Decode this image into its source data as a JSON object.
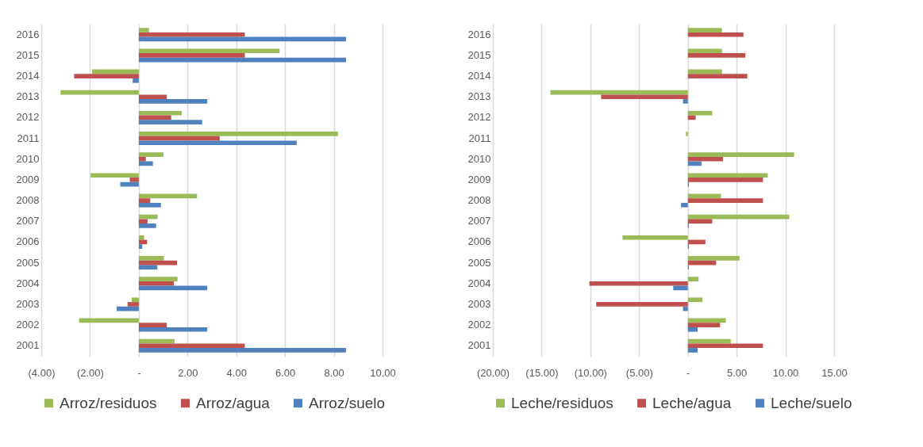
{
  "chart_data": [
    {
      "type": "bar",
      "orientation": "horizontal",
      "categories": [
        "2016",
        "2015",
        "2014",
        "2013",
        "2012",
        "2011",
        "2010",
        "2009",
        "2008",
        "2007",
        "2006",
        "2005",
        "2004",
        "2003",
        "2002",
        "2001"
      ],
      "series": [
        {
          "name": "Arroz/residuos",
          "color": "#9bbb59",
          "values": [
            0.42,
            5.78,
            -1.92,
            -3.21,
            1.76,
            8.17,
            1.01,
            -1.97,
            2.39,
            0.77,
            0.22,
            1.03,
            1.59,
            -0.29,
            -2.45,
            1.47
          ]
        },
        {
          "name": "Arroz/agua",
          "color": "#c0504d",
          "values": [
            4.35,
            4.35,
            -2.65,
            1.15,
            1.33,
            3.32,
            0.29,
            -0.37,
            0.47,
            0.36,
            0.34,
            1.57,
            1.44,
            -0.46,
            1.15,
            4.35
          ]
        },
        {
          "name": "Arroz/suelo",
          "color": "#4f81bd",
          "values": [
            8.5,
            8.5,
            -0.25,
            2.81,
            2.6,
            6.48,
            0.58,
            -0.76,
            0.91,
            0.71,
            0.14,
            0.76,
            2.81,
            -0.91,
            2.81,
            8.5
          ]
        }
      ],
      "xlim": [
        -4,
        10
      ],
      "xticks": [
        {
          "value": -4,
          "label": "(4.00)"
        },
        {
          "value": -2,
          "label": "(2.00)"
        },
        {
          "value": 0,
          "label": "-"
        },
        {
          "value": 2,
          "label": "2.00"
        },
        {
          "value": 4,
          "label": "4.00"
        },
        {
          "value": 6,
          "label": "6.00"
        },
        {
          "value": 8,
          "label": "8.00"
        },
        {
          "value": 10,
          "label": "10.00"
        }
      ],
      "grid": "x",
      "legend": "bottom"
    },
    {
      "type": "bar",
      "orientation": "horizontal",
      "categories": [
        "2016",
        "2015",
        "2014",
        "2013",
        "2012",
        "2011",
        "2010",
        "2009",
        "2008",
        "2007",
        "2006",
        "2005",
        "2004",
        "2003",
        "2002",
        "2001"
      ],
      "series": [
        {
          "name": "Leche/residuos",
          "color": "#9bbb59",
          "values": [
            3.5,
            3.5,
            3.5,
            -14.1,
            2.5,
            -0.2,
            10.9,
            8.2,
            3.4,
            10.4,
            -6.7,
            5.3,
            1.1,
            1.5,
            3.9,
            4.4
          ]
        },
        {
          "name": "Leche/agua",
          "color": "#c0504d",
          "values": [
            5.7,
            5.9,
            6.1,
            -8.9,
            0.8,
            0,
            3.6,
            7.7,
            7.7,
            2.5,
            1.8,
            2.9,
            -10.1,
            -9.4,
            3.3,
            7.7
          ]
        },
        {
          "name": "Leche/suelo",
          "color": "#4f81bd",
          "values": [
            0,
            0,
            0,
            -0.5,
            0,
            0,
            1.4,
            0.1,
            -0.7,
            0.1,
            0.1,
            0.1,
            -1.5,
            -0.5,
            1,
            1
          ]
        }
      ],
      "xlim": [
        -20,
        15
      ],
      "xticks": [
        {
          "value": -20,
          "label": "(20.00)"
        },
        {
          "value": -15,
          "label": "(15.00)"
        },
        {
          "value": -10,
          "label": "(10.00)"
        },
        {
          "value": -5,
          "label": "(5.00)"
        },
        {
          "value": 0,
          "label": "-"
        },
        {
          "value": 5,
          "label": "5.00"
        },
        {
          "value": 10,
          "label": "10.00"
        },
        {
          "value": 15,
          "label": "15.00"
        }
      ],
      "grid": "x",
      "legend": "bottom"
    }
  ]
}
